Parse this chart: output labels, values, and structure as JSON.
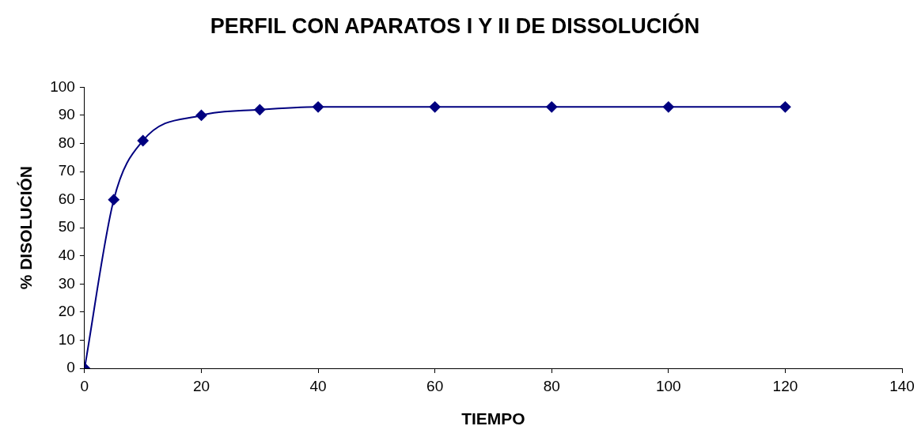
{
  "chart_data": {
    "type": "line",
    "title": "PERFIL CON APARATOS I Y II DE DISSOLUCIÓN",
    "xlabel": "TIEMPO",
    "ylabel": "% DISOLUCIÓN",
    "x": [
      0,
      5,
      10,
      20,
      30,
      40,
      60,
      80,
      100,
      120
    ],
    "series": [
      {
        "color": "#000080",
        "values": [
          0,
          60,
          81,
          90,
          92,
          93,
          93,
          93,
          93,
          93
        ]
      }
    ],
    "xlim": [
      0,
      140
    ],
    "xticks": [
      0,
      20,
      40,
      60,
      80,
      100,
      120,
      140
    ],
    "ylim": [
      0,
      100
    ],
    "yticks": [
      0,
      10,
      20,
      30,
      40,
      50,
      60,
      70,
      80,
      90,
      100
    ],
    "grid": false,
    "legend": false,
    "marker": "diamond",
    "line_style": "solid"
  }
}
